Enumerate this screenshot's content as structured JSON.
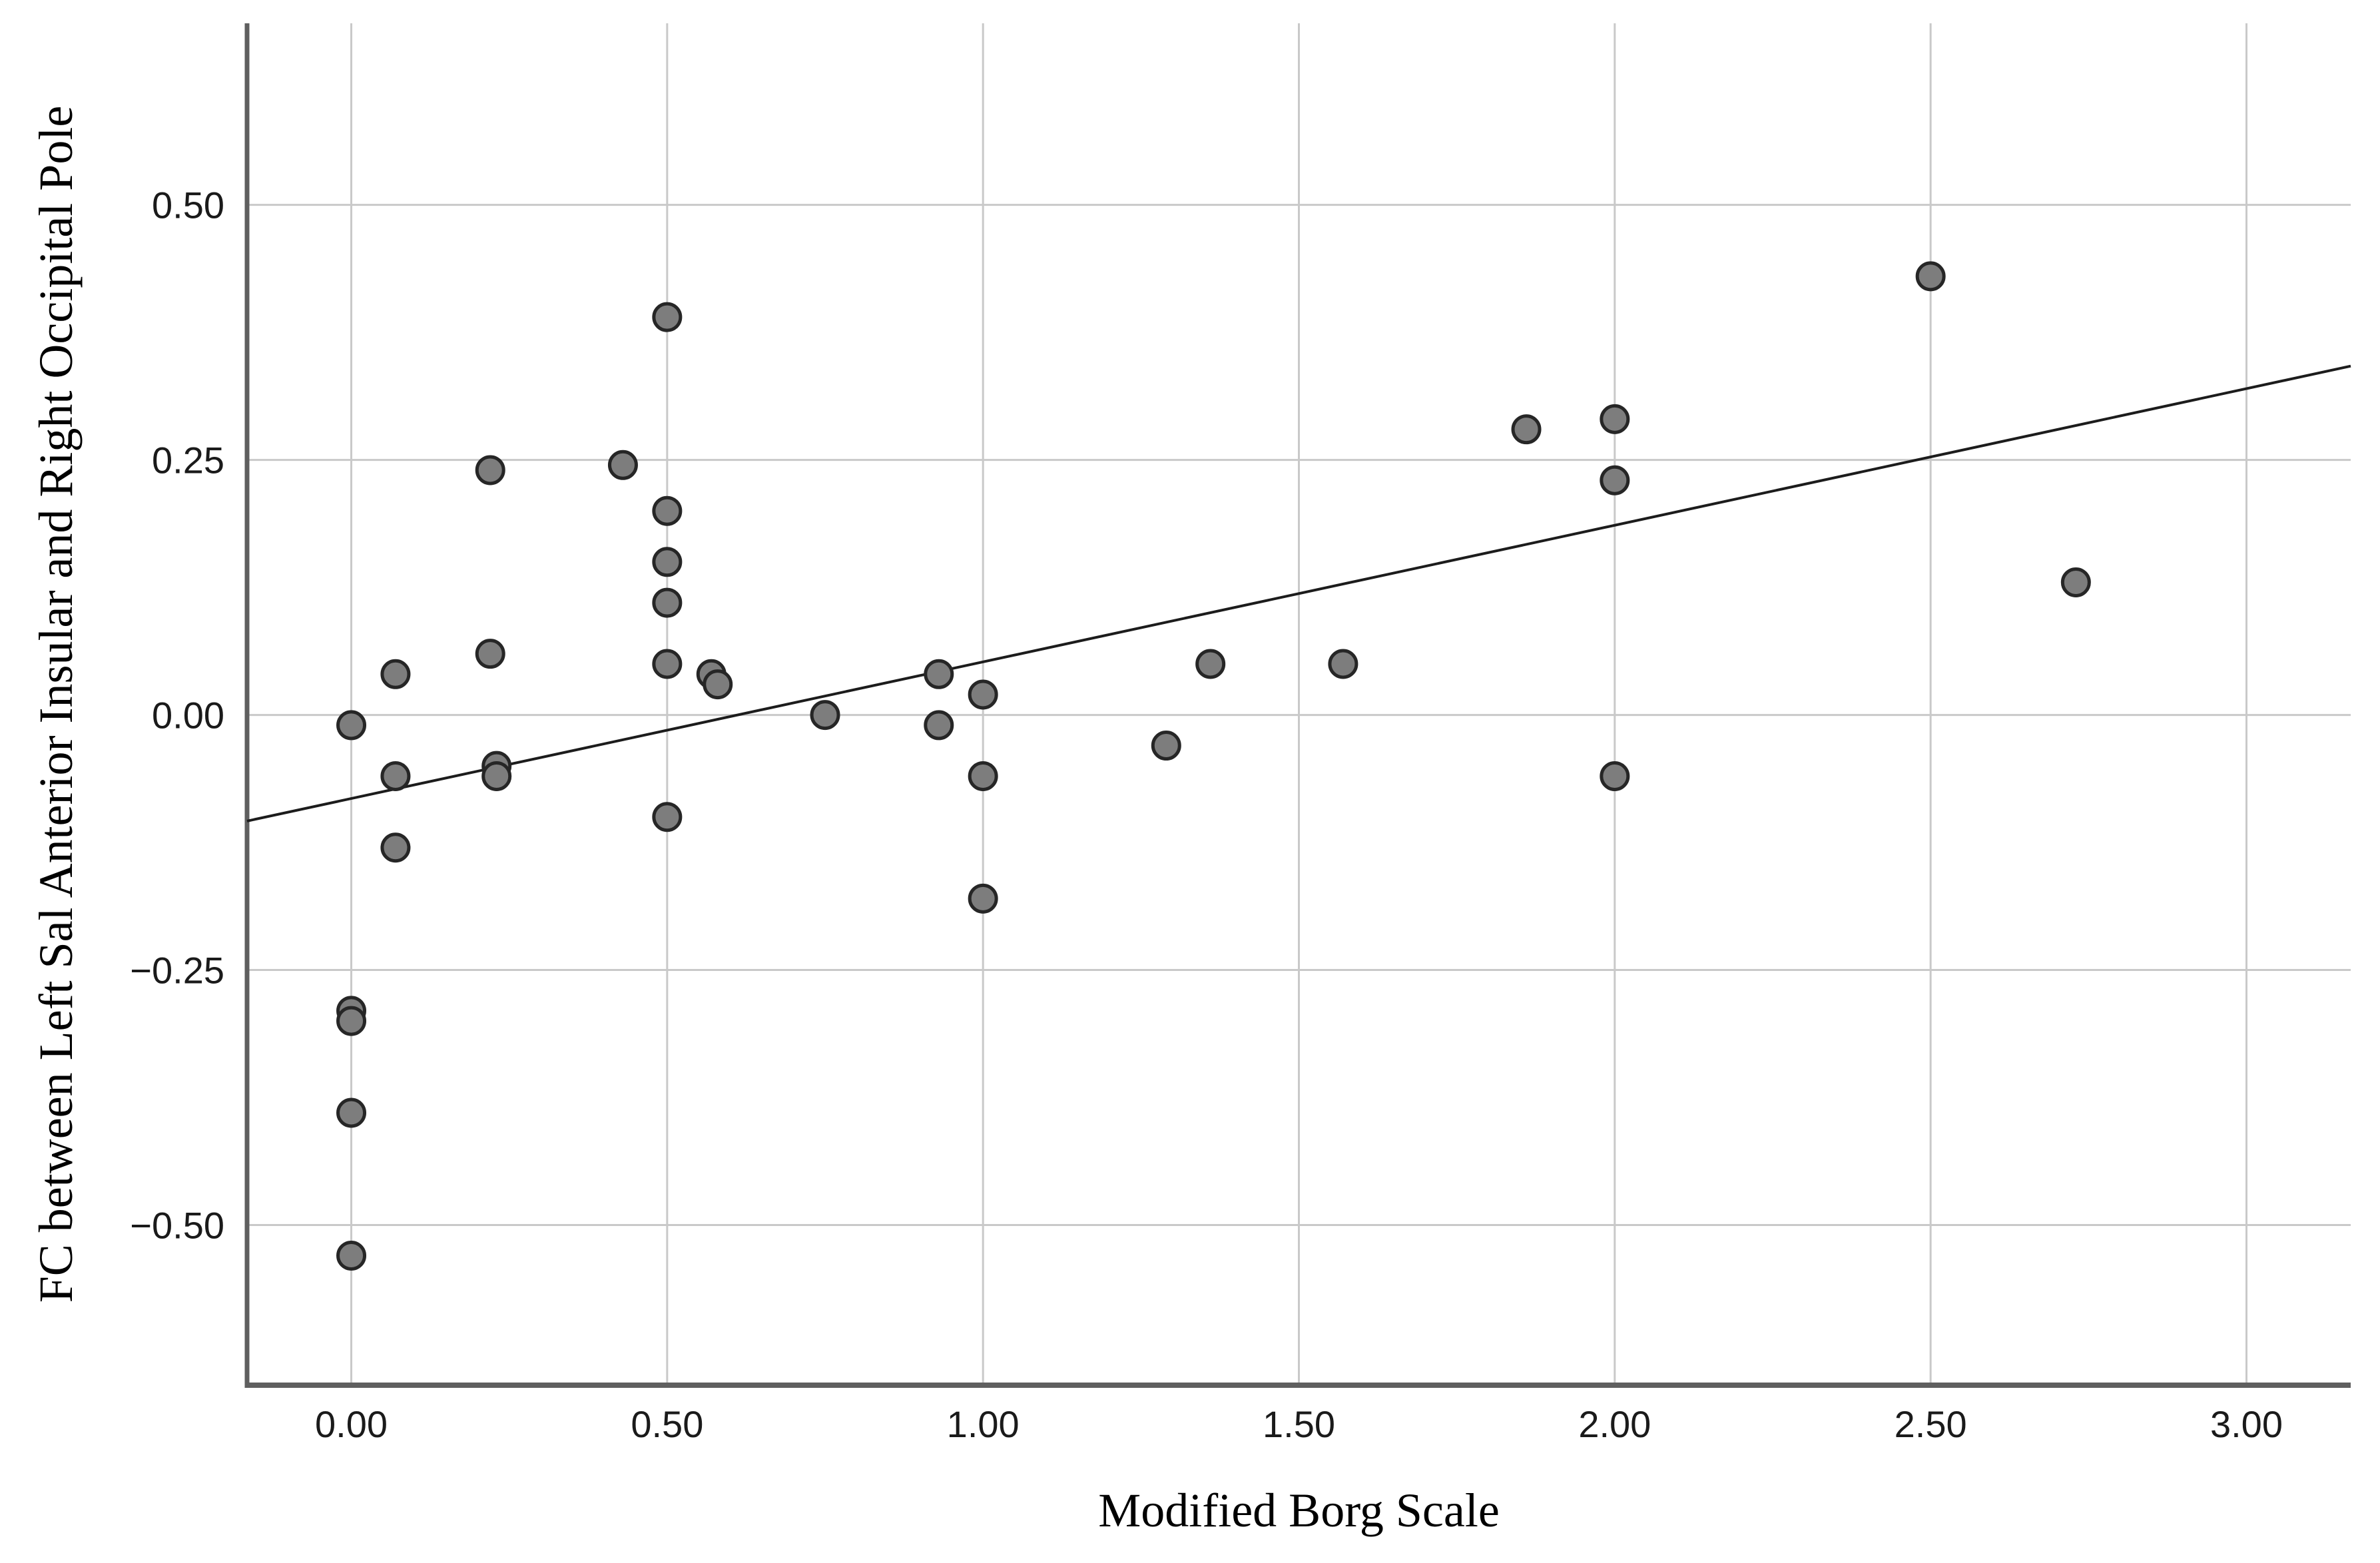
{
  "figure": {
    "background": "#ffffff"
  },
  "chart_data": {
    "type": "scatter",
    "title": "",
    "xlabel": "Modified Borg Scale",
    "ylabel": "FC between Left Sal Anterior Insular and Right Occipital Pole",
    "xlim": [
      -0.165,
      3.165
    ],
    "ylim": [
      -0.657,
      0.678
    ],
    "x_ticks": [
      0.0,
      0.5,
      1.0,
      1.5,
      2.0,
      2.5,
      3.0
    ],
    "x_tick_labels": [
      "0.00",
      "0.50",
      "1.00",
      "1.50",
      "2.00",
      "2.50",
      "3.00"
    ],
    "y_ticks": [
      0.5,
      0.25,
      0.0,
      -0.25,
      -0.5
    ],
    "y_tick_labels": [
      "0.50",
      "0.25",
      "0.00",
      "−0.25",
      "−0.50"
    ],
    "grid": true,
    "legend_position": "none",
    "points": [
      [
        0.0,
        -0.01
      ],
      [
        0.0,
        -0.29
      ],
      [
        0.0,
        -0.3
      ],
      [
        0.0,
        -0.39
      ],
      [
        0.0,
        -0.53
      ],
      [
        0.07,
        0.04
      ],
      [
        0.07,
        -0.06
      ],
      [
        0.07,
        -0.13
      ],
      [
        0.22,
        0.24
      ],
      [
        0.22,
        0.06
      ],
      [
        0.23,
        -0.05
      ],
      [
        0.23,
        -0.06
      ],
      [
        0.43,
        0.245
      ],
      [
        0.5,
        0.39
      ],
      [
        0.5,
        0.2
      ],
      [
        0.5,
        0.15
      ],
      [
        0.5,
        0.11
      ],
      [
        0.5,
        0.05
      ],
      [
        0.5,
        -0.1
      ],
      [
        0.57,
        0.04
      ],
      [
        0.58,
        0.03
      ],
      [
        0.75,
        0.0
      ],
      [
        0.93,
        0.04
      ],
      [
        0.93,
        -0.01
      ],
      [
        1.0,
        0.02
      ],
      [
        1.0,
        -0.06
      ],
      [
        1.0,
        -0.18
      ],
      [
        1.29,
        -0.03
      ],
      [
        1.36,
        0.05
      ],
      [
        1.57,
        0.05
      ],
      [
        1.86,
        0.28
      ],
      [
        2.0,
        0.29
      ],
      [
        2.0,
        0.23
      ],
      [
        2.0,
        -0.06
      ],
      [
        2.5,
        0.43
      ],
      [
        2.73,
        0.13
      ]
    ],
    "fit_line": {
      "x1": -0.165,
      "y1": -0.104,
      "x2": 3.165,
      "y2": 0.342,
      "slope": 0.134,
      "intercept": -0.082
    },
    "style": {
      "point_fill": "#7d7d7d",
      "point_stroke": "#262626",
      "line_color": "#1c1c1c",
      "grid_color": "#c9c9c9",
      "axis_color": "#5f5f5f",
      "tick_label_color": "#1a1a1a",
      "title_color": "#000000"
    }
  }
}
